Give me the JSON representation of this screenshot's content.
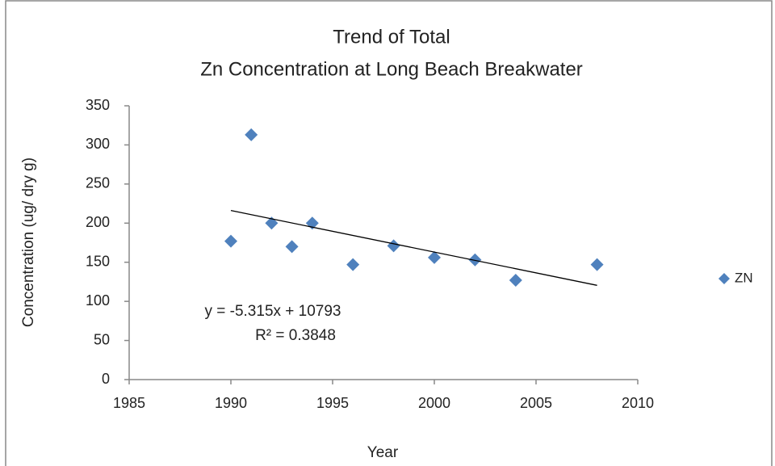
{
  "chart_data": {
    "type": "scatter",
    "title": "Trend of Total",
    "subtitle": "Zn Concentration at Long Beach Breakwater",
    "xlabel": "Year",
    "ylabel": "Concentration (ug/ dry g)",
    "x": [
      1990,
      1991,
      1992,
      1993,
      1994,
      1996,
      1998,
      2000,
      2002,
      2004,
      2008
    ],
    "series": [
      {
        "name": "ZN",
        "color": "#4f81bd",
        "values": [
          177,
          313,
          200,
          170,
          200,
          147,
          171,
          156,
          153,
          127,
          147
        ]
      }
    ],
    "xlim": [
      1985,
      2010
    ],
    "xticks": [
      1985,
      1990,
      1995,
      2000,
      2005,
      2010
    ],
    "ylim": [
      0,
      350
    ],
    "yticks": [
      0,
      50,
      100,
      150,
      200,
      250,
      300,
      350
    ],
    "grid": false,
    "legend": "right",
    "trendline": {
      "slope": -5.315,
      "intercept": 10793,
      "color": "#000000",
      "equation": "y = -5.315x + 10793",
      "r2": "R² = 0.3848"
    }
  }
}
